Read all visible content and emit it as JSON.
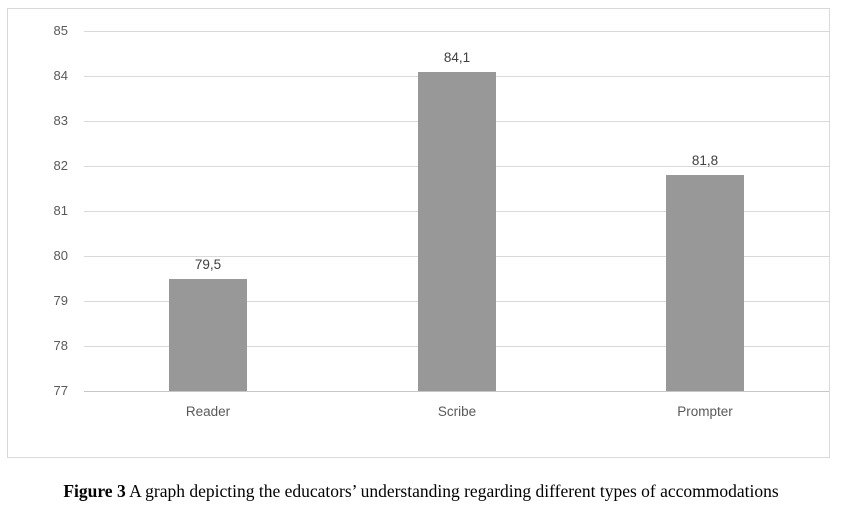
{
  "chart_data": {
    "type": "bar",
    "categories": [
      "Reader",
      "Scribe",
      "Prompter"
    ],
    "values": [
      79.5,
      84.1,
      81.8
    ],
    "value_labels": [
      "79,5",
      "84,1",
      "81,8"
    ],
    "title": "",
    "xlabel": "",
    "ylabel": "",
    "ylim": [
      77,
      85
    ],
    "yticks": [
      77,
      78,
      79,
      80,
      81,
      82,
      83,
      84,
      85
    ],
    "grid": true,
    "legend": "none",
    "colors": {
      "bar": "#989898",
      "gridline": "#D9D9D9",
      "axis_line": "#C6C6C6",
      "tick_label": "#595959",
      "category_label": "#595959",
      "data_label": "#3F3F3F",
      "chart_border": "#D9D9D9",
      "background": "#FFFFFF"
    }
  },
  "caption": {
    "bold": "Figure 3",
    "text": " A graph depicting the educators’ understanding regarding different types of accommodations"
  }
}
